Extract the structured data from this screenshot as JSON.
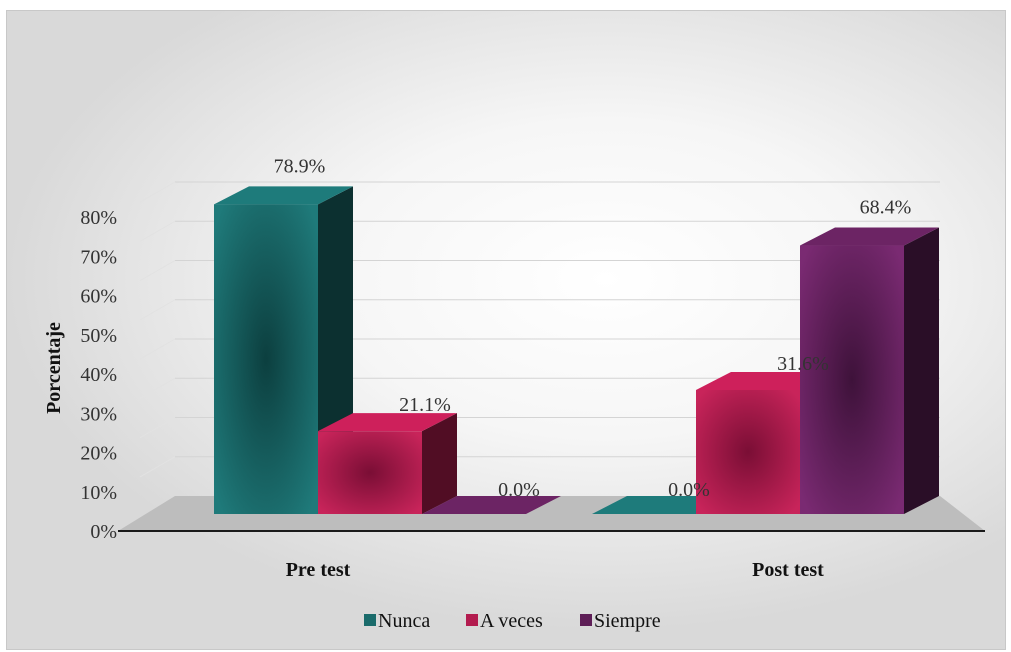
{
  "chart_data": {
    "type": "bar",
    "categories": [
      "Pre test",
      "Post test"
    ],
    "series": [
      {
        "name": "Nunca",
        "values": [
          78.9,
          0.0
        ],
        "color": "#1a6b6b"
      },
      {
        "name": "A veces",
        "values": [
          21.1,
          31.6
        ],
        "color": "#b31c4f"
      },
      {
        "name": "Siempre",
        "values": [
          0.0,
          68.4
        ],
        "color": "#5e1f57"
      }
    ],
    "data_labels": [
      [
        "78.9%",
        "0.0%"
      ],
      [
        "21.1%",
        "31.6%"
      ],
      [
        "0.0%",
        "68.4%"
      ]
    ],
    "ylabel": "Porcentaje",
    "xlabel": "",
    "title": "",
    "yticks": [
      "0%",
      "10%",
      "20%",
      "30%",
      "40%",
      "50%",
      "60%",
      "70%",
      "80%"
    ],
    "ylim": [
      0,
      80
    ],
    "style": "3d",
    "legend_position": "bottom"
  }
}
